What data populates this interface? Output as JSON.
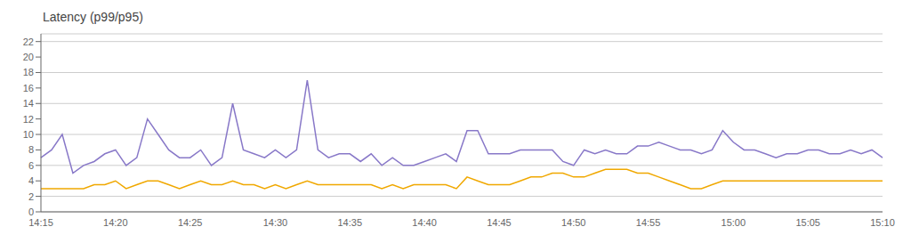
{
  "chart_data": {
    "type": "line",
    "title": "Latency (p99/p95)",
    "categories": [
      "14:15",
      null,
      null,
      null,
      null,
      null,
      null,
      "14:20",
      null,
      null,
      null,
      null,
      null,
      null,
      "14:25",
      null,
      null,
      null,
      null,
      null,
      null,
      null,
      "14:30",
      null,
      null,
      null,
      null,
      null,
      null,
      "14:35",
      null,
      null,
      null,
      null,
      null,
      null,
      "14:40",
      null,
      null,
      null,
      null,
      null,
      null,
      "14:45",
      null,
      null,
      null,
      null,
      null,
      null,
      "14:50",
      null,
      null,
      null,
      null,
      null,
      null,
      "14:55",
      null,
      null,
      null,
      null,
      null,
      null,
      null,
      "15:00",
      null,
      null,
      null,
      null,
      null,
      null,
      "15:05",
      null,
      null,
      null,
      null,
      null,
      null,
      "15:10"
    ],
    "series": [
      {
        "color": "#8878c8",
        "values": [
          7.0,
          8.0,
          10.0,
          5.0,
          6.0,
          6.5,
          7.5,
          8.0,
          6.0,
          7.0,
          12.0,
          10.0,
          8.0,
          7.0,
          7.0,
          8.0,
          6.0,
          7.0,
          14.0,
          8.0,
          7.5,
          7.0,
          8.0,
          7.0,
          8.0,
          17.0,
          8.0,
          7.0,
          7.5,
          7.5,
          6.5,
          7.5,
          6.0,
          7.0,
          6.0,
          6.0,
          6.5,
          7.0,
          7.5,
          6.5,
          10.5,
          10.5,
          7.5,
          7.5,
          7.5,
          8.0,
          8.0,
          8.0,
          8.0,
          6.5,
          6.0,
          8.0,
          7.5,
          8.0,
          7.5,
          7.5,
          8.5,
          8.5,
          9.0,
          8.5,
          8.0,
          8.0,
          7.5,
          8.0,
          10.5,
          9.0,
          8.0,
          8.0,
          7.5,
          7.0,
          7.5,
          7.5,
          8.0,
          8.0,
          7.5,
          7.5,
          8.0,
          7.5,
          8.0,
          7.0
        ]
      },
      {
        "color": "#f0a800",
        "values": [
          3.0,
          3.0,
          3.0,
          3.0,
          3.0,
          3.5,
          3.5,
          4.0,
          3.0,
          3.5,
          4.0,
          4.0,
          3.5,
          3.0,
          3.5,
          4.0,
          3.5,
          3.5,
          4.0,
          3.5,
          3.5,
          3.0,
          3.5,
          3.0,
          3.5,
          4.0,
          3.5,
          3.5,
          3.5,
          3.5,
          3.5,
          3.5,
          3.0,
          3.5,
          3.0,
          3.5,
          3.5,
          3.5,
          3.5,
          3.0,
          4.5,
          4.0,
          3.5,
          3.5,
          3.5,
          4.0,
          4.5,
          4.5,
          5.0,
          5.0,
          4.5,
          4.5,
          5.0,
          5.5,
          5.5,
          5.5,
          5.0,
          5.0,
          4.5,
          4.0,
          3.5,
          3.0,
          3.0,
          3.5,
          4.0,
          4.0,
          4.0,
          4.0,
          4.0,
          4.0,
          4.0,
          4.0,
          4.0,
          4.0,
          4.0,
          4.0,
          4.0,
          4.0,
          4.0,
          4.0
        ]
      }
    ],
    "ylim": [
      0,
      23
    ],
    "yticks": [
      0,
      2,
      4,
      6,
      8,
      10,
      12,
      14,
      16,
      18,
      20,
      22
    ],
    "grid": true
  }
}
